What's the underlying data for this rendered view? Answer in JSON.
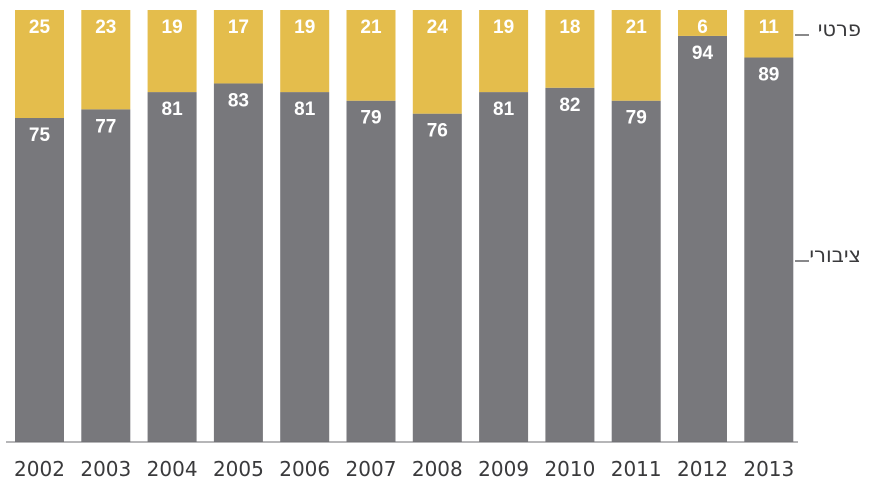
{
  "chart_data": {
    "type": "bar",
    "stacked": true,
    "categories": [
      "2002",
      "2003",
      "2004",
      "2005",
      "2006",
      "2007",
      "2008",
      "2009",
      "2010",
      "2011",
      "2012",
      "2013"
    ],
    "series": [
      {
        "name": "ציבורי",
        "color": "#78787c",
        "values": [
          75,
          77,
          81,
          83,
          81,
          79,
          76,
          81,
          82,
          79,
          94,
          89
        ]
      },
      {
        "name": "פרטי",
        "color": "#e4bd4c",
        "values": [
          25,
          23,
          19,
          17,
          19,
          21,
          24,
          19,
          18,
          21,
          6,
          11
        ]
      }
    ],
    "ylim": [
      0,
      100
    ],
    "legend_position": "right",
    "grid": false
  }
}
